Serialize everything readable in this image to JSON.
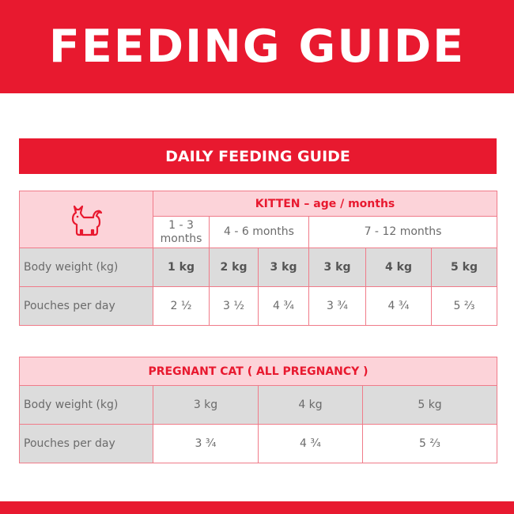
{
  "header": {
    "title": "FEEDING GUIDE"
  },
  "banner": {
    "title": "DAILY FEEDING GUIDE"
  },
  "kitten_table": {
    "icon": "cat-icon",
    "title": "KITTEN – age / months",
    "age_groups": [
      "1 - 3 months",
      "4 - 6 months",
      "7 - 12 months"
    ],
    "row_labels": {
      "weight": "Body weight (kg)",
      "pouches": "Pouches per day"
    },
    "weights": [
      "1 kg",
      "2 kg",
      "3 kg",
      "3 kg",
      "4 kg",
      "5 kg"
    ],
    "pouches": [
      "2 ½",
      "3 ½",
      "4 ¾",
      "3 ¾",
      "4 ¾",
      "5 ⅔"
    ]
  },
  "pregnant_table": {
    "title": "PREGNANT CAT ( ALL PREGNANCY )",
    "row_labels": {
      "weight": "Body weight (kg)",
      "pouches": "Pouches per day"
    },
    "weights": [
      "3 kg",
      "4 kg",
      "5 kg"
    ],
    "pouches": [
      "3 ¾",
      "4 ¾",
      "5 ⅔"
    ]
  },
  "colors": {
    "brand_red": "#e8192f",
    "pink": "#fcd3d9",
    "grey": "#dcdcdc",
    "border": "#f07b89"
  }
}
